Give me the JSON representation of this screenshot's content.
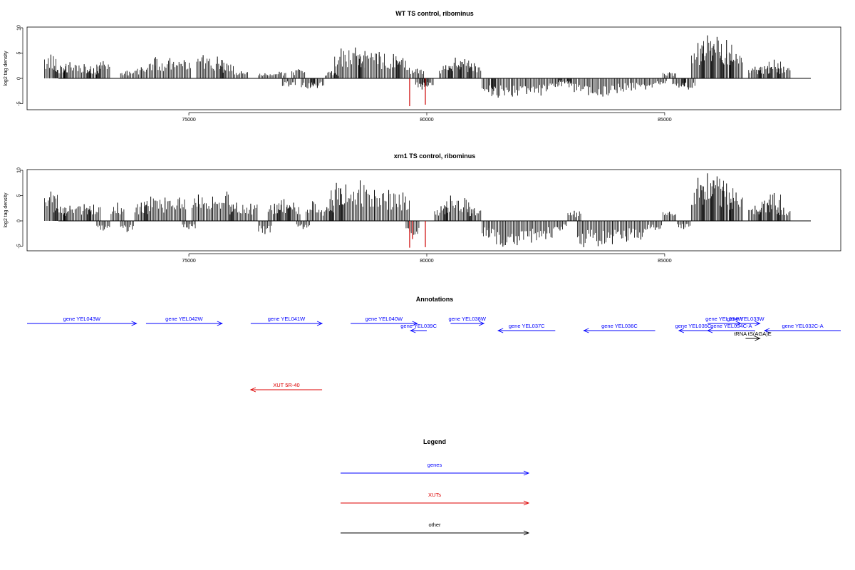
{
  "chart_data": [
    {
      "type": "bar",
      "title": "WT TS control, ribominus",
      "ylabel": "log2 tag density",
      "xlim": [
        71600,
        88700
      ],
      "ylim": [
        -6,
        10
      ],
      "x_ticks": [
        75000,
        80000,
        85000
      ],
      "y_ticks": [
        -5,
        0,
        5,
        10
      ],
      "series": [
        {
          "color": "#000000",
          "bars": [
            [
              72100,
              4.7
            ],
            [
              72300,
              2.5
            ],
            [
              72500,
              3.2
            ],
            [
              72800,
              2.8
            ],
            [
              73000,
              2.0
            ],
            [
              73200,
              3.4
            ],
            [
              73700,
              1.5
            ],
            [
              74000,
              2.2
            ],
            [
              74300,
              4.2
            ],
            [
              74600,
              4.0
            ],
            [
              74900,
              3.6
            ],
            [
              75300,
              4.6
            ],
            [
              75600,
              4.3
            ],
            [
              75800,
              2.9
            ],
            [
              76100,
              1.4
            ],
            [
              76600,
              1.0
            ],
            [
              76900,
              1.3
            ],
            [
              77100,
              -1.6
            ],
            [
              77300,
              1.8
            ],
            [
              77500,
              -2.0
            ],
            [
              77700,
              -1.9
            ],
            [
              78000,
              1.4
            ],
            [
              78200,
              5.9
            ],
            [
              78500,
              6.1
            ],
            [
              78700,
              5.4
            ],
            [
              79000,
              5.2
            ],
            [
              79300,
              4.8
            ],
            [
              79500,
              4.0
            ],
            [
              79800,
              1.9
            ],
            [
              79900,
              -2.2
            ],
            [
              80000,
              -1.5
            ],
            [
              80400,
              2.6
            ],
            [
              80600,
              4.1
            ],
            [
              80800,
              3.8
            ],
            [
              81000,
              3.0
            ],
            [
              81300,
              -2.7
            ],
            [
              81500,
              -3.8
            ],
            [
              81800,
              -3.6
            ],
            [
              82100,
              -3.1
            ],
            [
              82400,
              -3.4
            ],
            [
              82700,
              -1.7
            ],
            [
              82900,
              -1.0
            ],
            [
              83100,
              -2.7
            ],
            [
              83400,
              -3.3
            ],
            [
              83700,
              -3.6
            ],
            [
              84000,
              -2.9
            ],
            [
              84300,
              -2.4
            ],
            [
              84600,
              -2.2
            ],
            [
              84900,
              -1.2
            ],
            [
              85100,
              1.2
            ],
            [
              85300,
              -1.8
            ],
            [
              85500,
              -2.2
            ],
            [
              85700,
              7.0
            ],
            [
              85900,
              8.5
            ],
            [
              86100,
              8.2
            ],
            [
              86300,
              7.6
            ],
            [
              86500,
              4.8
            ],
            [
              86900,
              2.3
            ],
            [
              87100,
              2.4
            ],
            [
              87300,
              3.7
            ],
            [
              87500,
              2.3
            ]
          ]
        },
        {
          "color": "#cc0000",
          "bars": [
            [
              79640,
              -5.5
            ],
            [
              79970,
              -5.2
            ]
          ]
        }
      ]
    },
    {
      "type": "bar",
      "title": "xrn1 TS control, ribominus",
      "ylabel": "log2 tag density",
      "xlim": [
        71600,
        88700
      ],
      "ylim": [
        -6,
        10
      ],
      "x_ticks": [
        75000,
        80000,
        85000
      ],
      "y_ticks": [
        -5,
        0,
        5,
        10
      ],
      "series": [
        {
          "color": "#000000",
          "bars": [
            [
              72100,
              5.8
            ],
            [
              72300,
              2.8
            ],
            [
              72500,
              3.0
            ],
            [
              72800,
              3.3
            ],
            [
              73000,
              3.2
            ],
            [
              73200,
              -1.9
            ],
            [
              73500,
              3.6
            ],
            [
              73700,
              -2.2
            ],
            [
              74000,
              3.6
            ],
            [
              74200,
              4.8
            ],
            [
              74500,
              4.6
            ],
            [
              74800,
              4.6
            ],
            [
              75000,
              -1.6
            ],
            [
              75200,
              5.2
            ],
            [
              75500,
              4.8
            ],
            [
              75800,
              5.8
            ],
            [
              76000,
              3.6
            ],
            [
              76300,
              3.4
            ],
            [
              76600,
              -2.6
            ],
            [
              76800,
              3.4
            ],
            [
              77000,
              4.3
            ],
            [
              77200,
              3.6
            ],
            [
              77400,
              -1.6
            ],
            [
              77600,
              3.9
            ],
            [
              77900,
              2.7
            ],
            [
              78100,
              7.5
            ],
            [
              78300,
              7.2
            ],
            [
              78600,
              8.0
            ],
            [
              78900,
              6.1
            ],
            [
              79200,
              6.1
            ],
            [
              79500,
              5.6
            ],
            [
              79700,
              -3.1
            ],
            [
              80300,
              2.9
            ],
            [
              80500,
              5.0
            ],
            [
              80800,
              4.5
            ],
            [
              81000,
              2.5
            ],
            [
              81300,
              -3.3
            ],
            [
              81600,
              -5.1
            ],
            [
              81900,
              -4.8
            ],
            [
              82200,
              -4.3
            ],
            [
              82500,
              -3.6
            ],
            [
              82800,
              -1.9
            ],
            [
              83100,
              2.0
            ],
            [
              83300,
              -5.2
            ],
            [
              83600,
              -5.0
            ],
            [
              83900,
              -4.6
            ],
            [
              84200,
              -4.1
            ],
            [
              84500,
              -3.7
            ],
            [
              84800,
              -1.8
            ],
            [
              85100,
              1.8
            ],
            [
              85400,
              -1.6
            ],
            [
              85700,
              8.5
            ],
            [
              85900,
              9.4
            ],
            [
              86100,
              8.8
            ],
            [
              86300,
              7.4
            ],
            [
              86500,
              5.6
            ],
            [
              86900,
              3.0
            ],
            [
              87100,
              4.0
            ],
            [
              87300,
              5.5
            ],
            [
              87500,
              2.6
            ]
          ]
        },
        {
          "color": "#cc0000",
          "bars": [
            [
              79640,
              -5.3
            ],
            [
              79700,
              -3.6
            ],
            [
              79970,
              -5.2
            ]
          ]
        }
      ]
    }
  ],
  "annotations": {
    "title": "Annotations",
    "xlim": [
      71600,
      88700
    ],
    "features": [
      {
        "label": "gene YEL043W",
        "start": 71600,
        "end": 73900,
        "dir": "+",
        "kind": "gene",
        "row": 0
      },
      {
        "label": "gene YEL042W",
        "start": 74100,
        "end": 75700,
        "dir": "+",
        "kind": "gene",
        "row": 0
      },
      {
        "label": "gene YEL041W",
        "start": 76300,
        "end": 77800,
        "dir": "+",
        "kind": "gene",
        "row": 0
      },
      {
        "label": "gene YEL040W",
        "start": 78400,
        "end": 79800,
        "dir": "+",
        "kind": "gene",
        "row": 0
      },
      {
        "label": "gene YEL039C",
        "start": 79660,
        "end": 80000,
        "dir": "-",
        "kind": "gene",
        "row": 1
      },
      {
        "label": "gene YEL038W",
        "start": 80500,
        "end": 81200,
        "dir": "+",
        "kind": "gene",
        "row": 0
      },
      {
        "label": "gene YEL037C",
        "start": 81500,
        "end": 82700,
        "dir": "-",
        "kind": "gene",
        "row": 1
      },
      {
        "label": "gene YEL036C",
        "start": 83300,
        "end": 84800,
        "dir": "-",
        "kind": "gene",
        "row": 1
      },
      {
        "label": "gene YEL035C",
        "start": 85300,
        "end": 85900,
        "dir": "-",
        "kind": "gene",
        "row": 1
      },
      {
        "label": "gene YEL034W",
        "start": 85900,
        "end": 86600,
        "dir": "+",
        "kind": "gene",
        "row": 0
      },
      {
        "label": "gene YEL034C-A",
        "start": 85900,
        "end": 86900,
        "dir": "-",
        "kind": "gene",
        "row": 1
      },
      {
        "label": "gene YEL033W",
        "start": 86400,
        "end": 87000,
        "dir": "+",
        "kind": "gene",
        "row": 0
      },
      {
        "label": "gene YEL032C-A",
        "start": 87100,
        "end": 88700,
        "dir": "-",
        "kind": "gene",
        "row": 1
      },
      {
        "label": "tRNA tS(AGA)E",
        "start": 86700,
        "end": 87000,
        "dir": "+",
        "kind": "other",
        "row": 2
      },
      {
        "label": "XUT 5R-40",
        "start": 76300,
        "end": 77800,
        "dir": "-",
        "kind": "xut",
        "row": 3
      }
    ]
  },
  "legend": {
    "title": "Legend",
    "items": [
      {
        "label": "genes",
        "color": "#0000ff"
      },
      {
        "label": "XUTs",
        "color": "#dd0000"
      },
      {
        "label": "other",
        "color": "#000000"
      }
    ]
  }
}
